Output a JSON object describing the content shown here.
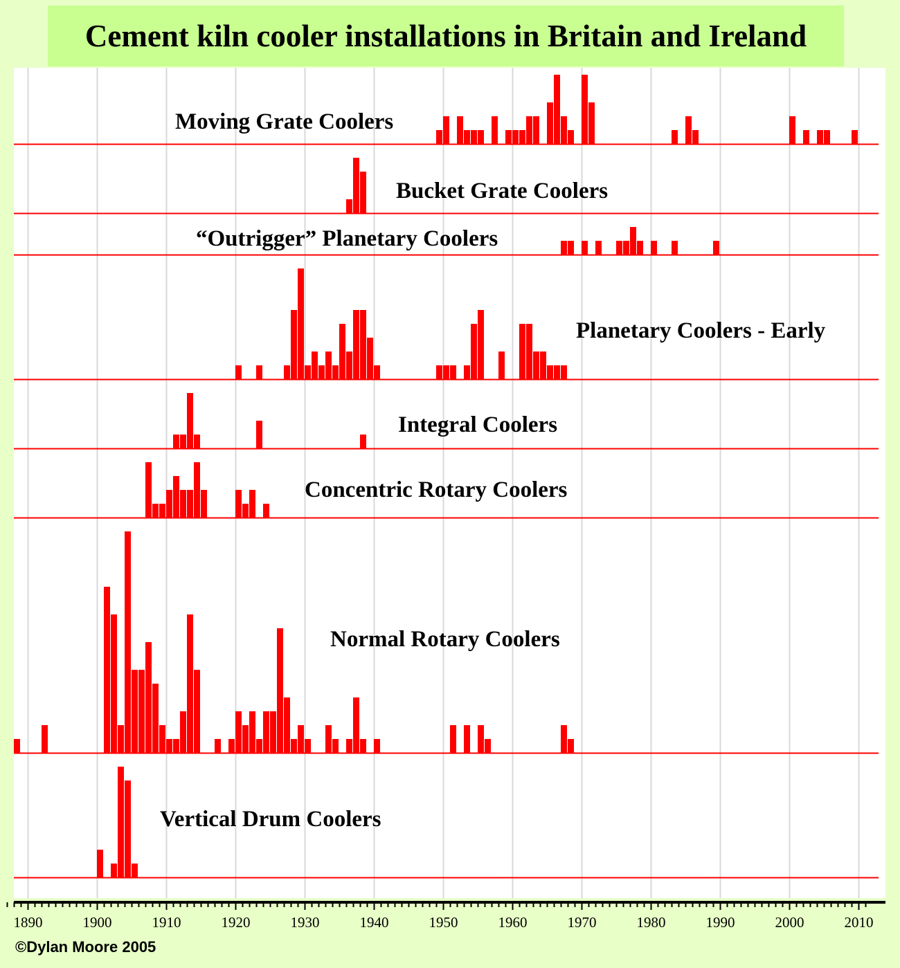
{
  "title": "Cement kiln cooler installations in Britain and Ireland",
  "copyright": "©Dylan Moore 2005",
  "colors": {
    "bar": "#ff0000",
    "baseline": "#ff0000",
    "grid": "#d8d8d8",
    "background": "#e8ffc8",
    "title_background": "#c8ff90",
    "plot_background": "#ffffff",
    "axis": "#000000"
  },
  "chart_data": {
    "type": "bar",
    "title": "Cement kiln cooler installations in Britain and Ireland",
    "xlabel": "",
    "ylabel": "",
    "xlim": [
      1886.5,
      2011.5
    ],
    "x_ticks": [
      1890,
      1900,
      1910,
      1920,
      1930,
      1940,
      1950,
      1960,
      1970,
      1980,
      1990,
      2000,
      2010
    ],
    "grid": true,
    "panels": [
      {
        "name": "Moving Grate Coolers",
        "capacity": 5,
        "data": [
          [
            1949,
            1
          ],
          [
            1950,
            2
          ],
          [
            1952,
            2
          ],
          [
            1953,
            1
          ],
          [
            1954,
            1
          ],
          [
            1955,
            1
          ],
          [
            1957,
            2
          ],
          [
            1959,
            1
          ],
          [
            1960,
            1
          ],
          [
            1961,
            1
          ],
          [
            1962,
            2
          ],
          [
            1963,
            2
          ],
          [
            1965,
            3
          ],
          [
            1966,
            5
          ],
          [
            1967,
            2
          ],
          [
            1968,
            1
          ],
          [
            1970,
            5
          ],
          [
            1971,
            3
          ],
          [
            1983,
            1
          ],
          [
            1985,
            2
          ],
          [
            1986,
            1
          ],
          [
            2000,
            2
          ],
          [
            2002,
            1
          ],
          [
            2004,
            1
          ],
          [
            2005,
            1
          ],
          [
            2009,
            1
          ]
        ]
      },
      {
        "name": "Bucket Grate Coolers",
        "capacity": 5,
        "data": [
          [
            1936,
            1
          ],
          [
            1937,
            4
          ],
          [
            1938,
            3
          ]
        ]
      },
      {
        "name": "“Outrigger” Planetary Coolers",
        "capacity": 3,
        "data": [
          [
            1967,
            1
          ],
          [
            1968,
            1
          ],
          [
            1970,
            1
          ],
          [
            1972,
            1
          ],
          [
            1975,
            1
          ],
          [
            1976,
            1
          ],
          [
            1977,
            2
          ],
          [
            1978,
            1
          ],
          [
            1980,
            1
          ],
          [
            1983,
            1
          ],
          [
            1989,
            1
          ]
        ]
      },
      {
        "name": "Planetary Coolers - Early",
        "capacity": 9,
        "data": [
          [
            1920,
            1
          ],
          [
            1923,
            1
          ],
          [
            1927,
            1
          ],
          [
            1928,
            5
          ],
          [
            1929,
            8
          ],
          [
            1930,
            1
          ],
          [
            1931,
            2
          ],
          [
            1932,
            1
          ],
          [
            1933,
            2
          ],
          [
            1934,
            1
          ],
          [
            1935,
            4
          ],
          [
            1936,
            2
          ],
          [
            1937,
            5
          ],
          [
            1938,
            5
          ],
          [
            1939,
            3
          ],
          [
            1940,
            1
          ],
          [
            1949,
            1
          ],
          [
            1950,
            1
          ],
          [
            1951,
            1
          ],
          [
            1953,
            1
          ],
          [
            1954,
            4
          ],
          [
            1955,
            5
          ],
          [
            1958,
            2
          ],
          [
            1961,
            4
          ],
          [
            1962,
            4
          ],
          [
            1963,
            2
          ],
          [
            1964,
            2
          ],
          [
            1965,
            1
          ],
          [
            1966,
            1
          ],
          [
            1967,
            1
          ]
        ]
      },
      {
        "name": "Integral Coolers",
        "capacity": 5,
        "data": [
          [
            1911,
            1
          ],
          [
            1912,
            1
          ],
          [
            1913,
            4
          ],
          [
            1914,
            1
          ],
          [
            1923,
            2
          ],
          [
            1938,
            1
          ]
        ]
      },
      {
        "name": "Concentric Rotary Coolers",
        "capacity": 5,
        "data": [
          [
            1907,
            4
          ],
          [
            1908,
            1
          ],
          [
            1909,
            1
          ],
          [
            1910,
            2
          ],
          [
            1911,
            3
          ],
          [
            1912,
            2
          ],
          [
            1913,
            2
          ],
          [
            1914,
            4
          ],
          [
            1915,
            2
          ],
          [
            1920,
            2
          ],
          [
            1921,
            1
          ],
          [
            1922,
            2
          ],
          [
            1924,
            1
          ]
        ]
      },
      {
        "name": "Normal Rotary Coolers",
        "capacity": 17,
        "data": [
          [
            1888,
            1
          ],
          [
            1892,
            2
          ],
          [
            1901,
            12
          ],
          [
            1902,
            10
          ],
          [
            1903,
            2
          ],
          [
            1904,
            16
          ],
          [
            1905,
            6
          ],
          [
            1906,
            6
          ],
          [
            1907,
            8
          ],
          [
            1908,
            5
          ],
          [
            1909,
            2
          ],
          [
            1910,
            1
          ],
          [
            1911,
            1
          ],
          [
            1912,
            3
          ],
          [
            1913,
            10
          ],
          [
            1914,
            6
          ],
          [
            1917,
            1
          ],
          [
            1919,
            1
          ],
          [
            1920,
            3
          ],
          [
            1921,
            2
          ],
          [
            1922,
            3
          ],
          [
            1923,
            1
          ],
          [
            1924,
            3
          ],
          [
            1925,
            3
          ],
          [
            1926,
            9
          ],
          [
            1927,
            4
          ],
          [
            1928,
            1
          ],
          [
            1929,
            2
          ],
          [
            1930,
            1
          ],
          [
            1933,
            2
          ],
          [
            1934,
            1
          ],
          [
            1936,
            1
          ],
          [
            1937,
            4
          ],
          [
            1938,
            1
          ],
          [
            1940,
            1
          ],
          [
            1951,
            2
          ],
          [
            1953,
            2
          ],
          [
            1955,
            2
          ],
          [
            1956,
            1
          ],
          [
            1967,
            2
          ],
          [
            1968,
            1
          ]
        ]
      },
      {
        "name": "Vertical Drum Coolers",
        "capacity": 9,
        "data": [
          [
            1900,
            2
          ],
          [
            1902,
            1
          ],
          [
            1903,
            8
          ],
          [
            1904,
            7
          ],
          [
            1905,
            1
          ]
        ]
      }
    ]
  }
}
